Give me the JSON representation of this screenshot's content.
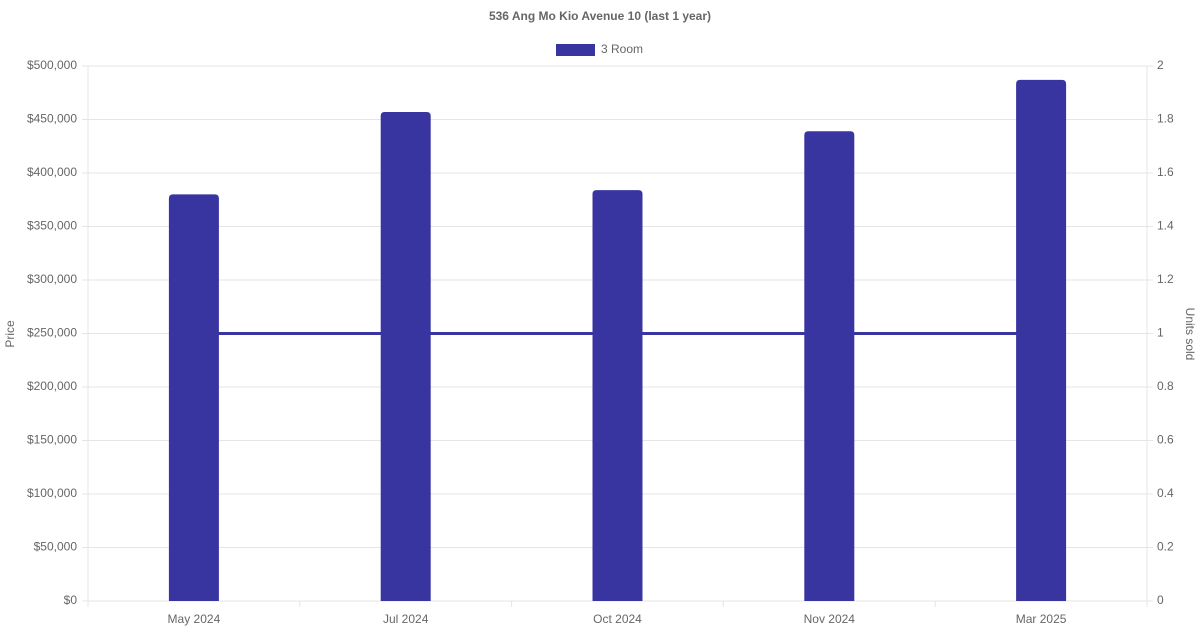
{
  "chart_data": {
    "type": "bar",
    "title": "536 Ang Mo Kio Avenue 10 (last 1 year)",
    "y_label": "Price",
    "y2_label": "Units sold",
    "categories": [
      "May 2024",
      "Jul 2024",
      "Oct 2024",
      "Nov 2024",
      "Mar 2025"
    ],
    "series": [
      {
        "name": "3 Room",
        "type": "bar",
        "color": "#3834a0",
        "values": [
          380000,
          457000,
          384000,
          439000,
          487000
        ]
      },
      {
        "type": "line",
        "axis": "y2",
        "color": "#3834a0",
        "values": [
          1,
          1,
          1,
          1,
          1
        ]
      }
    ],
    "ylim": [
      0,
      500000
    ],
    "yticks": [
      {
        "value": 0,
        "label": "$0"
      },
      {
        "value": 50000,
        "label": "$50,000"
      },
      {
        "value": 100000,
        "label": "$100,000"
      },
      {
        "value": 150000,
        "label": "$150,000"
      },
      {
        "value": 200000,
        "label": "$200,000"
      },
      {
        "value": 250000,
        "label": "$250,000"
      },
      {
        "value": 300000,
        "label": "$300,000"
      },
      {
        "value": 350000,
        "label": "$350,000"
      },
      {
        "value": 400000,
        "label": "$400,000"
      },
      {
        "value": 450000,
        "label": "$450,000"
      },
      {
        "value": 500000,
        "label": "$500,000"
      }
    ],
    "y2lim": [
      0,
      2
    ],
    "y2ticks": [
      0,
      0.2,
      0.4,
      0.6,
      0.8,
      1,
      1.2,
      1.4,
      1.6,
      1.8,
      2
    ],
    "grid": true,
    "legend": "top"
  }
}
